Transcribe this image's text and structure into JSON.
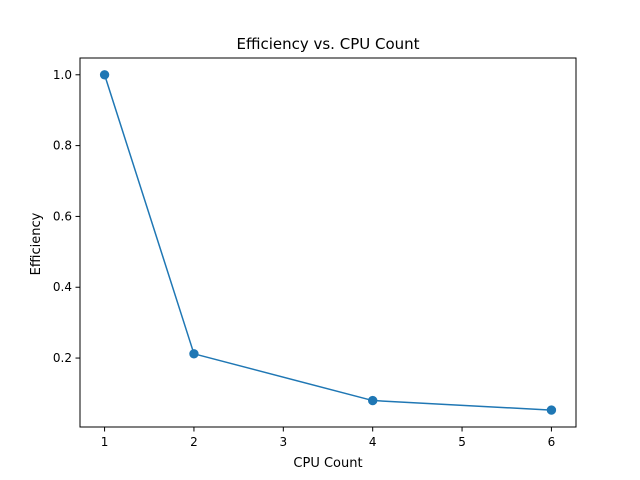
{
  "chart_data": {
    "type": "line",
    "title": "Efficiency vs. CPU Count",
    "xlabel": "CPU Count",
    "ylabel": "Efficiency",
    "xlim": [
      0.725,
      6.275
    ],
    "ylim": [
      0.0053,
      1.0474
    ],
    "xticks": [
      1,
      2,
      3,
      4,
      5,
      6
    ],
    "xtick_labels": [
      "1",
      "2",
      "3",
      "4",
      "5",
      "6"
    ],
    "yticks": [
      0.2,
      0.4,
      0.6,
      0.8,
      1.0
    ],
    "ytick_labels": [
      "0.2",
      "0.4",
      "0.6",
      "0.8",
      "1.0"
    ],
    "grid": false,
    "series": [
      {
        "color": "#1f77b4",
        "marker": "circle",
        "x": [
          1,
          2,
          4,
          6
        ],
        "y": [
          1.0,
          0.212,
          0.08,
          0.053
        ]
      }
    ]
  }
}
